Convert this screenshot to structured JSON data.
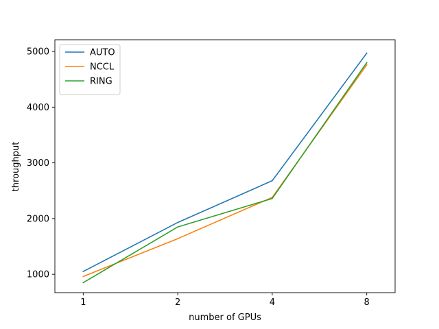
{
  "chart_data": {
    "type": "line",
    "title": "",
    "xlabel": "number of GPUs",
    "ylabel": "throughput",
    "categories": [
      "1",
      "2",
      "4",
      "8"
    ],
    "ylim": [
      670,
      5210
    ],
    "yticks": [
      1000,
      2000,
      3000,
      4000,
      5000
    ],
    "grid": false,
    "legend_position": "top-left",
    "series": [
      {
        "name": "AUTO",
        "color": "#1f77b4",
        "values": [
          1050,
          1930,
          2680,
          4970
        ]
      },
      {
        "name": "NCCL",
        "color": "#ff7f0e",
        "values": [
          960,
          1640,
          2380,
          4760
        ]
      },
      {
        "name": "RING",
        "color": "#2ca02c",
        "values": [
          850,
          1850,
          2360,
          4800
        ]
      }
    ]
  }
}
